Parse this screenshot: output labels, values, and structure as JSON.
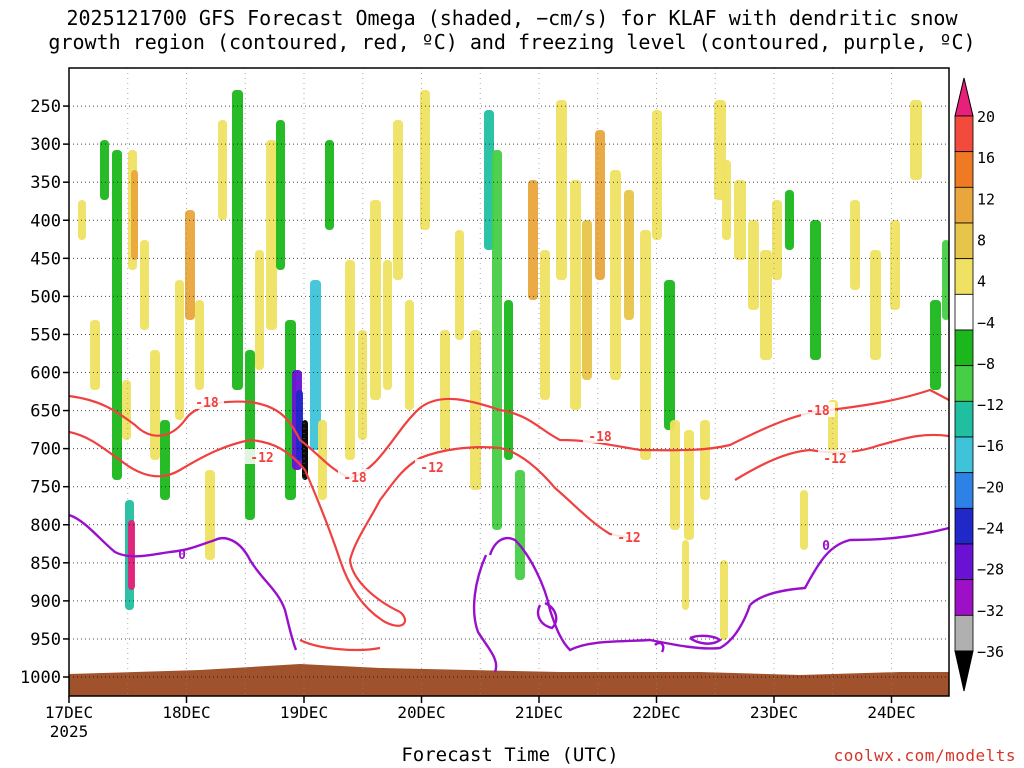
{
  "chart_data": {
    "type": "heatmap",
    "title_line1": "2025121700 GFS Forecast Omega (shaded, −cm/s) for KLAF with dendritic snow",
    "title_line2": "growth region (contoured, red, ºC) and freezing level (contoured, purple, ºC)",
    "xlabel": "Forecast Time (UTC)",
    "x_ticks": [
      "17DEC",
      "18DEC",
      "19DEC",
      "20DEC",
      "21DEC",
      "22DEC",
      "23DEC",
      "24DEC"
    ],
    "x_year": "2025",
    "y_ticks": [
      250,
      300,
      350,
      400,
      450,
      500,
      550,
      600,
      650,
      700,
      750,
      800,
      850,
      900,
      950,
      1000
    ],
    "y_range": [
      200,
      1000
    ],
    "grid": true,
    "colorbar": {
      "ticks": [
        "20",
        "16",
        "12",
        "8",
        "4",
        "−4",
        "−8",
        "−12",
        "−16",
        "−20",
        "−24",
        "−28",
        "−32",
        "−36"
      ],
      "colors": [
        "#e8207a",
        "#f24a3c",
        "#ef7a23",
        "#e9a63c",
        "#e7c54a",
        "#efe162",
        "#ffffff",
        "#1cb71c",
        "#46cf46",
        "#20bfa0",
        "#3ec3d8",
        "#2e82e6",
        "#2028c8",
        "#6a12d4",
        "#9e10c8",
        "#b0b0b0",
        "#000000"
      ]
    },
    "contours": {
      "red_labels": [
        "-18",
        "-12",
        "-18",
        "-12",
        "-18",
        "-12",
        "-18",
        "-12"
      ],
      "purple_labels": [
        "0",
        "0"
      ]
    },
    "terrain_color": "#a0522d",
    "dsg_color": "#f04040",
    "freezing_color": "#9910cc"
  },
  "credit": "coolwx.com/modelts"
}
